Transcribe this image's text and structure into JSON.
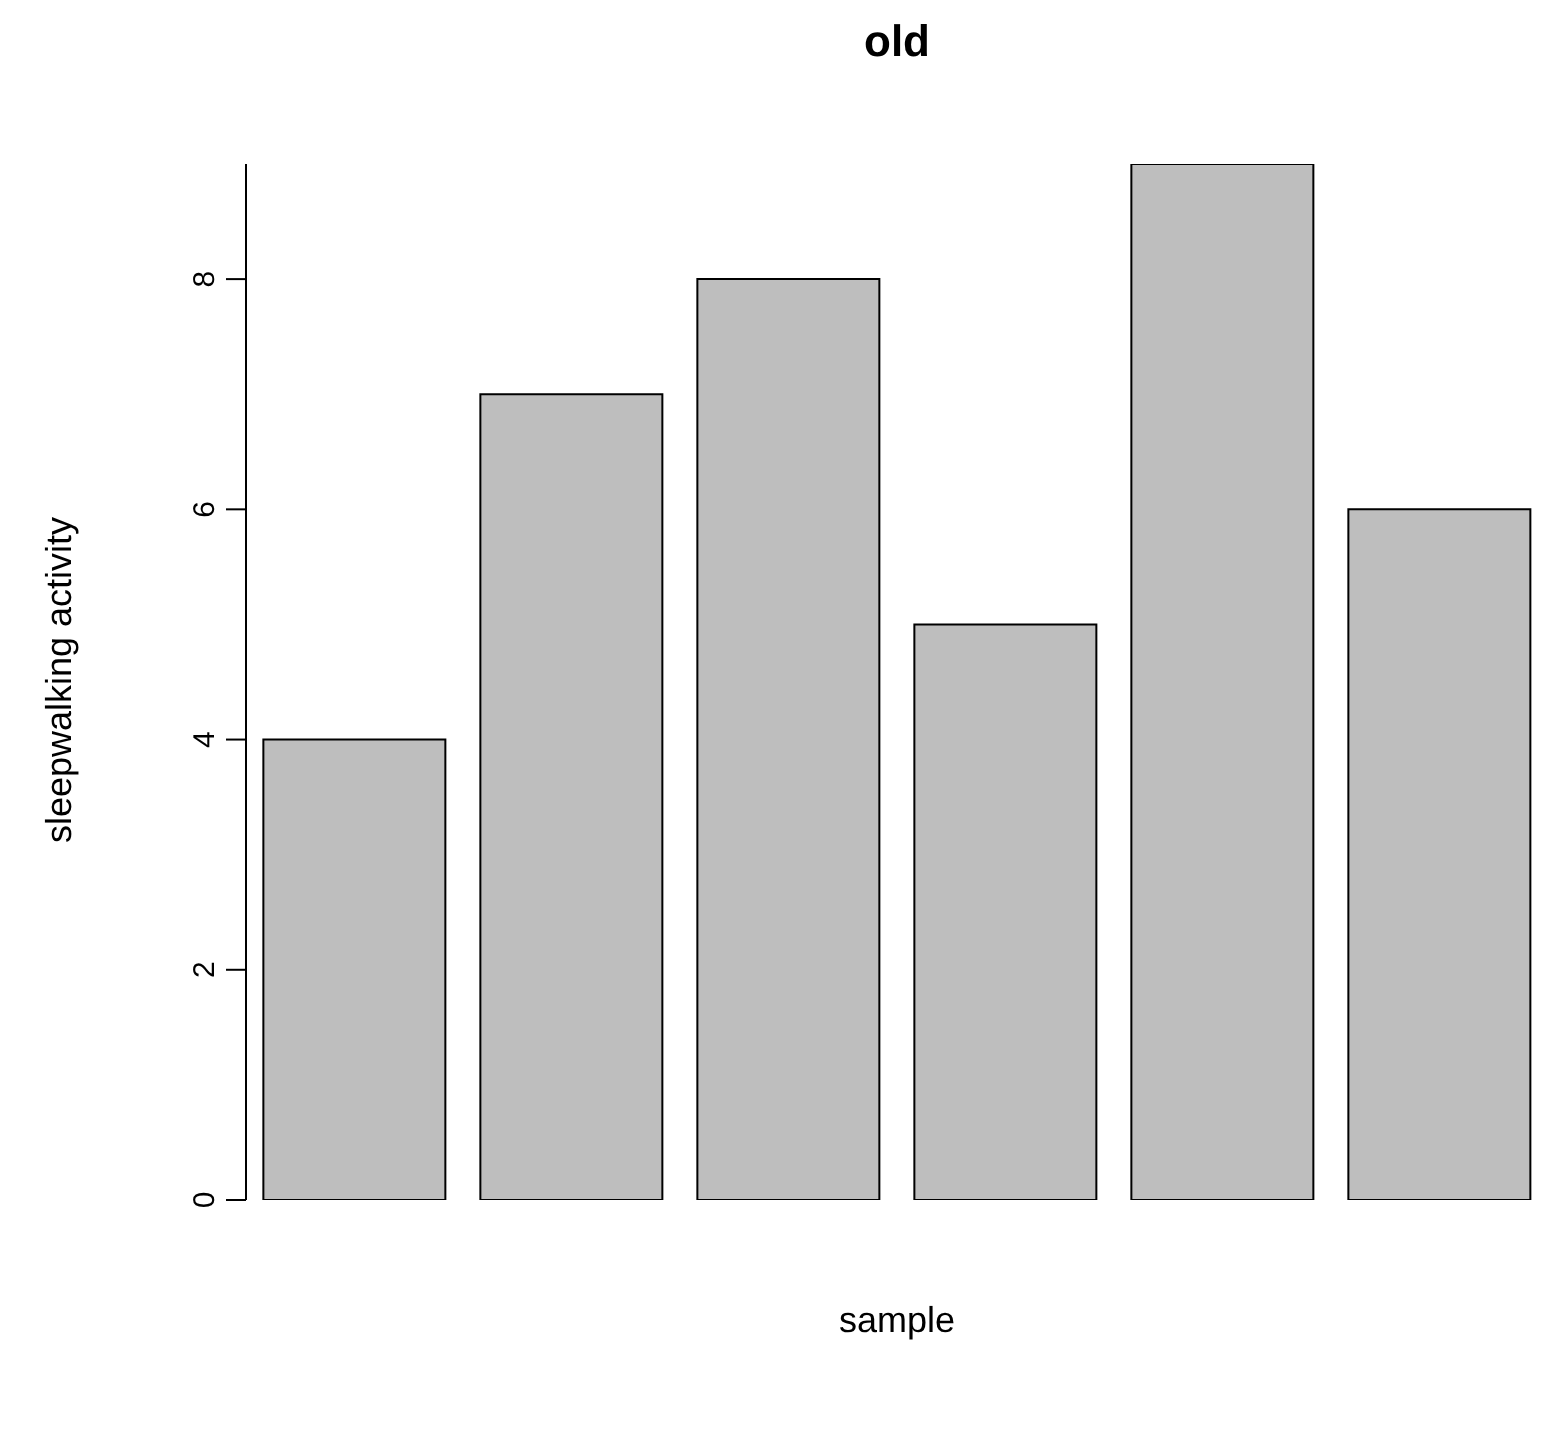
{
  "chart_data": {
    "type": "bar",
    "title": "old",
    "xlabel": "sample",
    "ylabel": "sleepwalking activity",
    "categories": [
      null,
      null,
      null,
      null,
      null,
      null
    ],
    "values": [
      4,
      7,
      8,
      5,
      9,
      6
    ],
    "color": "#bebebe",
    "ylim": [
      0,
      9
    ],
    "yticks": [
      0,
      2,
      4,
      6,
      8
    ],
    "grid": false,
    "legend": false
  }
}
